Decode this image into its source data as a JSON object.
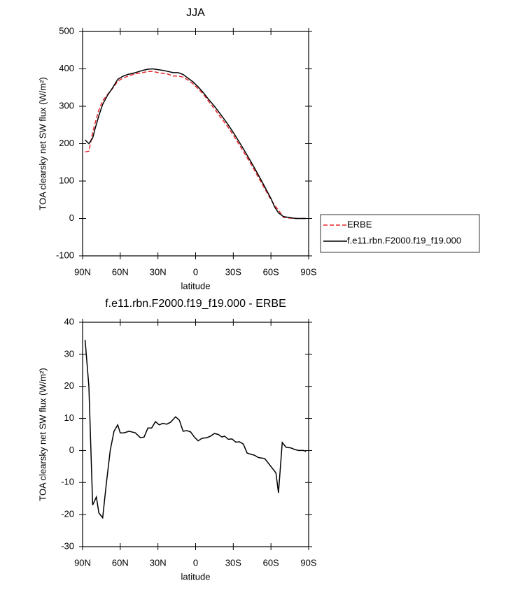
{
  "chart_data": [
    {
      "type": "line",
      "title": "JJA",
      "x_label": "latitude",
      "y_label": "TOA clearsky net SW flux (W/m²)",
      "x": [
        88,
        85,
        82,
        80,
        77,
        74,
        70,
        66,
        62,
        58,
        54,
        50,
        46,
        42,
        38,
        34,
        30,
        26,
        22,
        18,
        14,
        10,
        6,
        2,
        -2,
        -6,
        -10,
        -15,
        -20,
        -25,
        -30,
        -35,
        -40,
        -45,
        -50,
        -55,
        -60,
        -63,
        -66,
        -70,
        -75,
        -80,
        -85,
        -88
      ],
      "series": [
        {
          "name": "ERBE",
          "color": "#e8262a",
          "dashed": true,
          "values": [
            178,
            180,
            230,
            255,
            290,
            315,
            332,
            348,
            367,
            375,
            380,
            385,
            388,
            390,
            393,
            393,
            390,
            388,
            386,
            381,
            381,
            378,
            370,
            360,
            347,
            333,
            315,
            293,
            270,
            248,
            223,
            196,
            168,
            140,
            110,
            80,
            50,
            35,
            22,
            3,
            1,
            0,
            0,
            0
          ]
        },
        {
          "name": "f.e11.rbn.F2000.f19_f19.000",
          "color": "#000000",
          "dashed": false,
          "values": [
            210,
            200,
            215,
            240,
            275,
            305,
            330,
            350,
            372,
            380,
            385,
            388,
            392,
            396,
            399,
            400,
            398,
            396,
            393,
            390,
            390,
            385,
            375,
            365,
            352,
            337,
            320,
            300,
            278,
            255,
            230,
            203,
            175,
            146,
            116,
            85,
            53,
            30,
            15,
            5,
            2,
            0,
            0,
            0
          ]
        }
      ],
      "xlim": [
        90,
        -90
      ],
      "xticks": [
        {
          "value": 90,
          "label": "90N"
        },
        {
          "value": 60,
          "label": "60N"
        },
        {
          "value": 30,
          "label": "30N"
        },
        0,
        {
          "value": -30,
          "label": "30S"
        },
        {
          "value": -60,
          "label": "60S"
        },
        {
          "value": -90,
          "label": "90S"
        }
      ],
      "ylim": [
        -100,
        500
      ],
      "yticks": [
        -100,
        0,
        100,
        200,
        300,
        400,
        500
      ],
      "legend": "right"
    },
    {
      "type": "line",
      "title": "f.e11.rbn.F2000.f19_f19.000 - ERBE",
      "x_label": "latitude",
      "y_label": "TOA clearsky net SW flux (W/m²)",
      "x": [
        88,
        85,
        82,
        79,
        77,
        74,
        71,
        68,
        65,
        62,
        60,
        57,
        53,
        48,
        44,
        41,
        38,
        35,
        32,
        29,
        26,
        23,
        20,
        16,
        13,
        10,
        7,
        4,
        1,
        -2,
        -5,
        -9,
        -12,
        -15,
        -18,
        -21,
        -23,
        -26,
        -29,
        -32,
        -35,
        -38,
        -41,
        -44,
        -47,
        -50,
        -55,
        -60,
        -64,
        -66,
        -69,
        -72,
        -76,
        -79,
        -82,
        -86,
        -88
      ],
      "series": [
        {
          "color": "#000000",
          "dashed": false,
          "values": [
            34.5,
            20,
            -17,
            -14.5,
            -19.5,
            -21,
            -10,
            0,
            6,
            8,
            5.5,
            5.5,
            6,
            5.5,
            4,
            4.2,
            7,
            7,
            9,
            8,
            8.5,
            8.2,
            8.8,
            10.5,
            9.5,
            6,
            6.2,
            5.8,
            4.2,
            3,
            3.8,
            4,
            4.5,
            5.3,
            5,
            4.2,
            4.5,
            3.5,
            3.6,
            2.6,
            2.7,
            2,
            -0.8,
            -1.2,
            -1.5,
            -2.2,
            -2.5,
            -5,
            -7,
            -13.2,
            2.5,
            1,
            0.8,
            0.3,
            0,
            0,
            -0.3
          ]
        }
      ],
      "xlim": [
        90,
        -90
      ],
      "xticks": [
        {
          "value": 90,
          "label": "90N"
        },
        {
          "value": 60,
          "label": "60N"
        },
        {
          "value": 30,
          "label": "30N"
        },
        0,
        {
          "value": -30,
          "label": "30S"
        },
        {
          "value": -60,
          "label": "60S"
        },
        {
          "value": -90,
          "label": "90S"
        }
      ],
      "ylim": [
        -30,
        40
      ],
      "yticks": [
        -30,
        -20,
        -10,
        0,
        10,
        20,
        30,
        40
      ]
    }
  ]
}
